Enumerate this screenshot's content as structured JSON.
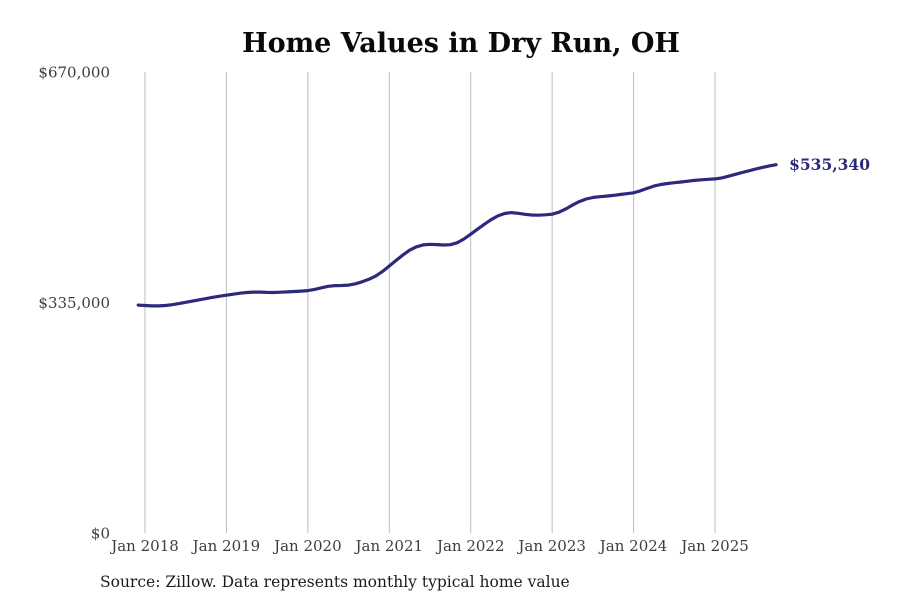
{
  "title": "Home Values in Dry Run, OH",
  "source": "Source: Zillow. Data represents monthly typical home value",
  "colors": {
    "line": "#2d2a7d",
    "grid": "#bdbdbd",
    "axis_text": "#3d3d3d",
    "title_text": "#0a0a0a",
    "source_text": "#1c1c1c",
    "background": "#ffffff"
  },
  "chart_data": {
    "type": "line",
    "title": "Home Values in Dry Run, OH",
    "xlabel": "",
    "ylabel": "",
    "ylim": [
      0,
      670000
    ],
    "grid": "vertical-only",
    "legend": "none",
    "line_color": "#2d2a7d",
    "last_value": 535340,
    "last_value_label": "$535,340",
    "y_ticks": [
      {
        "value": 0,
        "label": "$0"
      },
      {
        "value": 335000,
        "label": "$335,000"
      },
      {
        "value": 670000,
        "label": "$670,000"
      }
    ],
    "x_tick_labels": [
      "Jan 2018",
      "Jan 2019",
      "Jan 2020",
      "Jan 2021",
      "Jan 2022",
      "Jan 2023",
      "Jan 2024",
      "Jan 2025"
    ],
    "x": [
      "Dec 2017",
      "Jan 2018",
      "Feb 2018",
      "Mar 2018",
      "Apr 2018",
      "May 2018",
      "Jun 2018",
      "Jul 2018",
      "Aug 2018",
      "Sep 2018",
      "Oct 2018",
      "Nov 2018",
      "Dec 2018",
      "Jan 2019",
      "Feb 2019",
      "Mar 2019",
      "Apr 2019",
      "May 2019",
      "Jun 2019",
      "Jul 2019",
      "Aug 2019",
      "Sep 2019",
      "Oct 2019",
      "Nov 2019",
      "Dec 2019",
      "Jan 2020",
      "Feb 2020",
      "Mar 2020",
      "Apr 2020",
      "May 2020",
      "Jun 2020",
      "Jul 2020",
      "Aug 2020",
      "Sep 2020",
      "Oct 2020",
      "Nov 2020",
      "Dec 2020",
      "Jan 2021",
      "Feb 2021",
      "Mar 2021",
      "Apr 2021",
      "May 2021",
      "Jun 2021",
      "Jul 2021",
      "Aug 2021",
      "Sep 2021",
      "Oct 2021",
      "Nov 2021",
      "Dec 2021",
      "Jan 2022",
      "Feb 2022",
      "Mar 2022",
      "Apr 2022",
      "May 2022",
      "Jun 2022",
      "Jul 2022",
      "Aug 2022",
      "Sep 2022",
      "Oct 2022",
      "Nov 2022",
      "Dec 2022",
      "Jan 2023",
      "Feb 2023",
      "Mar 2023",
      "Apr 2023",
      "May 2023",
      "Jun 2023",
      "Jul 2023",
      "Aug 2023",
      "Sep 2023",
      "Oct 2023",
      "Nov 2023",
      "Dec 2023",
      "Jan 2024",
      "Feb 2024",
      "Mar 2024",
      "Apr 2024",
      "May 2024",
      "Jun 2024",
      "Jul 2024",
      "Aug 2024",
      "Sep 2024",
      "Oct 2024",
      "Nov 2024",
      "Dec 2024",
      "Jan 2025",
      "Feb 2025",
      "Mar 2025",
      "Apr 2025",
      "May 2025",
      "Jun 2025",
      "Jul 2025",
      "Aug 2025",
      "Sep 2025",
      "Oct 2025"
    ],
    "values": [
      331200,
      330700,
      330100,
      330000,
      330600,
      331800,
      333400,
      335300,
      337100,
      338900,
      340700,
      342500,
      344200,
      345600,
      347100,
      348500,
      349500,
      350100,
      350100,
      349700,
      349500,
      349900,
      350400,
      351000,
      351600,
      352300,
      354100,
      356400,
      358500,
      359500,
      359700,
      360300,
      362200,
      365100,
      368700,
      373300,
      380000,
      388000,
      396200,
      404100,
      411000,
      416000,
      418700,
      419600,
      419100,
      418500,
      419000,
      421800,
      427300,
      434200,
      441500,
      448700,
      455300,
      460900,
      464400,
      465600,
      464700,
      463200,
      462100,
      461900,
      462400,
      463300,
      466200,
      470900,
      476600,
      481700,
      485400,
      487600,
      488700,
      489600,
      490700,
      491900,
      493100,
      494500,
      497300,
      500800,
      504200,
      506500,
      508000,
      509100,
      510100,
      511300,
      512400,
      513300,
      514000,
      514700,
      516100,
      518500,
      521300,
      523900,
      526400,
      529000,
      531400,
      533500,
      535340
    ]
  }
}
